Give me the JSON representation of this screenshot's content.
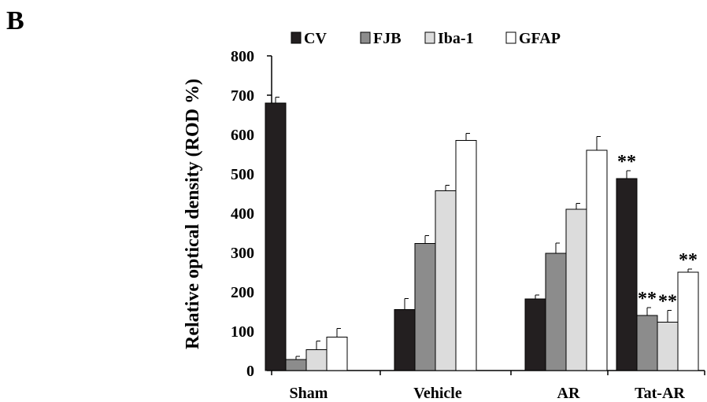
{
  "panel_label": "B",
  "chart_data": {
    "type": "bar",
    "categories": [
      "Sham",
      "Vehicle",
      "AR",
      "Tat-AR"
    ],
    "series": [
      {
        "name": "CV",
        "values": [
          680,
          155,
          182,
          488
        ],
        "errors": [
          15,
          28,
          10,
          20
        ],
        "color": "#231f20"
      },
      {
        "name": "FJB",
        "values": [
          28,
          323,
          298,
          140
        ],
        "errors": [
          8,
          20,
          26,
          20
        ],
        "color": "#8c8c8c"
      },
      {
        "name": "Iba-1",
        "values": [
          53,
          457,
          410,
          123
        ],
        "errors": [
          22,
          14,
          15,
          30
        ],
        "color": "#dcdcdc"
      },
      {
        "name": "GFAP",
        "values": [
          85,
          585,
          560,
          250
        ],
        "errors": [
          22,
          18,
          35,
          8
        ],
        "color": "#ffffff"
      }
    ],
    "annotations": [
      {
        "category": "Tat-AR",
        "series": "CV",
        "text": "**"
      },
      {
        "category": "Tat-AR",
        "series": "FJB",
        "text": "**"
      },
      {
        "category": "Tat-AR",
        "series": "Iba-1",
        "text": "**"
      },
      {
        "category": "Tat-AR",
        "series": "GFAP",
        "text": "**"
      }
    ],
    "title": "",
    "xlabel": "",
    "ylabel": "Relative optical density (ROD %)",
    "ylim": [
      0,
      800
    ],
    "yticks": [
      0,
      100,
      200,
      300,
      400,
      500,
      600,
      700,
      800
    ],
    "grid": false,
    "legend_position": "top"
  }
}
